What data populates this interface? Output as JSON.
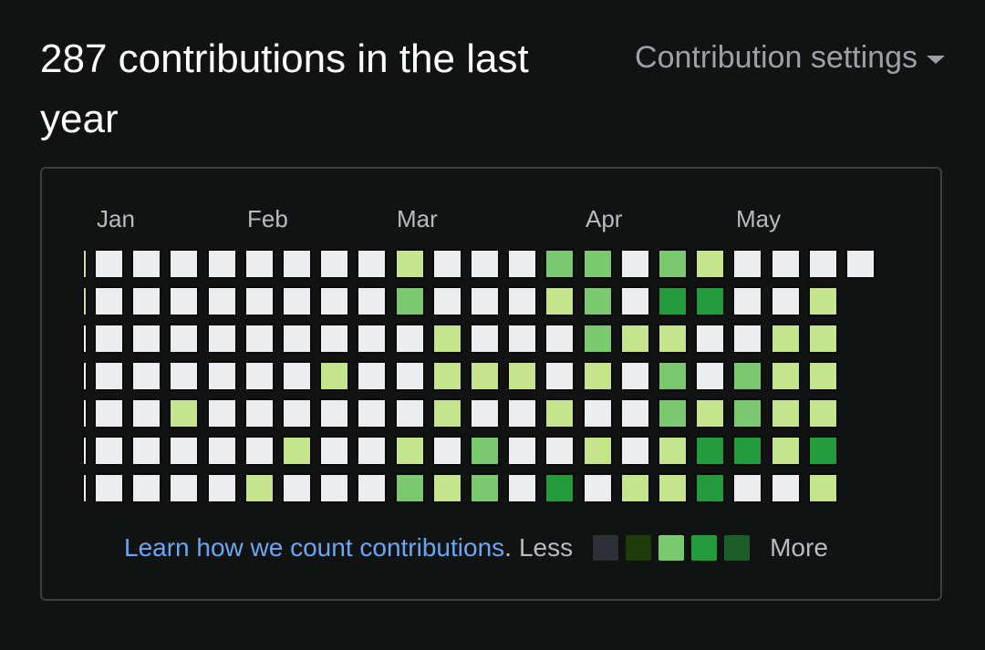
{
  "header": {
    "title": "287 contributions in the last year",
    "settings_label": "Contribution settings"
  },
  "months": [
    "Jan",
    "Feb",
    "Mar",
    "Apr",
    "May"
  ],
  "colors": {
    "empty": "#ebedf0",
    "l1": "#c6e48b",
    "l2": "#7bc96f",
    "l3": "#239a3b",
    "legend": [
      "#2d3136",
      "#1f3a0b",
      "#7bc96f",
      "#239a3b",
      "#1c5d2a"
    ]
  },
  "grid": {
    "rows": [
      [
        0,
        0,
        0,
        0,
        0,
        0,
        0,
        0,
        1,
        0,
        0,
        0,
        2,
        2,
        0,
        2,
        1,
        0,
        0,
        0,
        0
      ],
      [
        0,
        0,
        0,
        0,
        0,
        0,
        0,
        0,
        2,
        0,
        0,
        0,
        1,
        2,
        0,
        3,
        3,
        0,
        0,
        1
      ],
      [
        0,
        0,
        0,
        0,
        0,
        0,
        0,
        0,
        0,
        1,
        0,
        0,
        0,
        2,
        1,
        1,
        0,
        0,
        1,
        1
      ],
      [
        0,
        0,
        0,
        0,
        0,
        0,
        1,
        0,
        0,
        1,
        1,
        1,
        0,
        1,
        0,
        2,
        0,
        2,
        1,
        1
      ],
      [
        0,
        0,
        1,
        0,
        0,
        0,
        0,
        0,
        0,
        1,
        0,
        0,
        1,
        0,
        0,
        2,
        1,
        2,
        1,
        1
      ],
      [
        0,
        0,
        0,
        0,
        0,
        1,
        0,
        0,
        1,
        0,
        2,
        0,
        0,
        1,
        0,
        1,
        3,
        3,
        1,
        3
      ],
      [
        0,
        0,
        0,
        0,
        1,
        0,
        0,
        0,
        2,
        1,
        2,
        0,
        3,
        0,
        1,
        1,
        3,
        0,
        0,
        1
      ]
    ],
    "first_col_levels": [
      1,
      1,
      0,
      0,
      0,
      0,
      0
    ]
  },
  "footer": {
    "learn_link": "Learn how we count contributions",
    "period": ".",
    "less": "Less",
    "more": "More"
  }
}
